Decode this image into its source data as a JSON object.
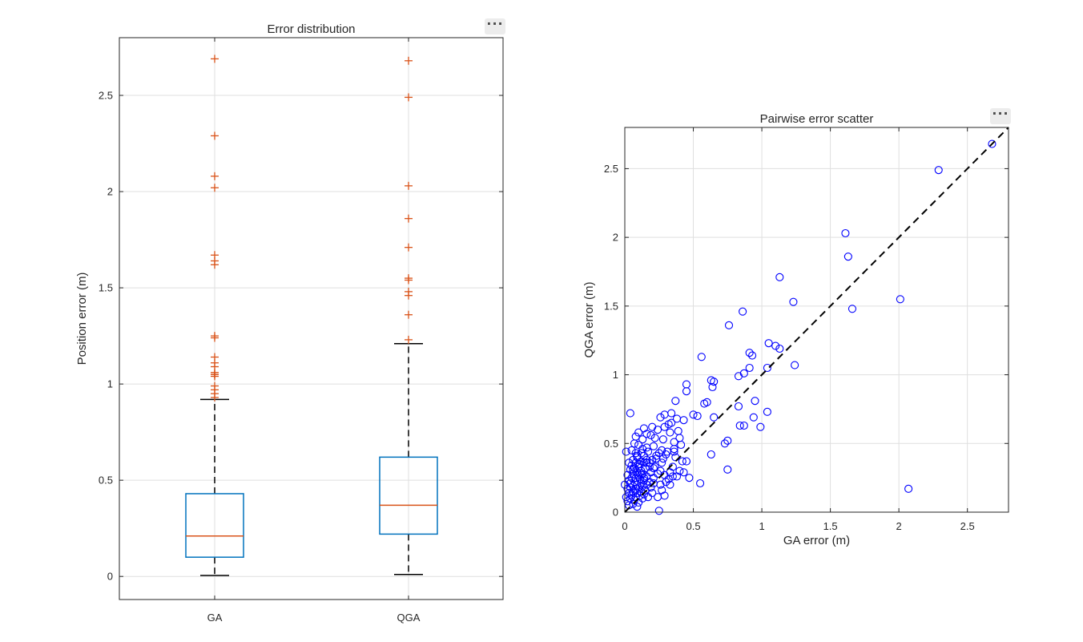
{
  "chart_data": [
    {
      "type": "box",
      "title": "Error distribution",
      "xlabel": "",
      "ylabel": "Position error (m)",
      "categories": [
        "GA",
        "QGA"
      ],
      "ylim": [
        -0.12,
        2.8
      ],
      "yticks": [
        0,
        0.5,
        1,
        1.5,
        2,
        2.5
      ],
      "ytick_labels": [
        "0",
        "0.5",
        "1",
        "1.5",
        "2",
        "2.5"
      ],
      "grid": true,
      "boxes": [
        {
          "name": "GA",
          "min": 0.005,
          "q1": 0.1,
          "median": 0.21,
          "q3": 0.43,
          "max": 0.92,
          "outliers": [
            2.69,
            2.29,
            2.08,
            2.02,
            1.67,
            1.64,
            1.62,
            1.25,
            1.24,
            1.14,
            1.11,
            1.09,
            1.06,
            1.05,
            1.05,
            1.04,
            0.99,
            0.97,
            0.95,
            0.93
          ]
        },
        {
          "name": "QGA",
          "min": 0.01,
          "q1": 0.22,
          "median": 0.37,
          "q3": 0.62,
          "max": 1.21,
          "outliers": [
            2.68,
            2.49,
            2.03,
            1.86,
            1.71,
            1.55,
            1.54,
            1.48,
            1.46,
            1.36,
            1.23
          ]
        }
      ],
      "colors": {
        "box": "#0072BD",
        "median": "#D95319",
        "outlier": "#D95319",
        "whisker": "#000000",
        "grid": "#dfdfdf"
      }
    },
    {
      "type": "scatter",
      "title": "Pairwise error scatter",
      "xlabel": "GA error (m)",
      "ylabel": "QGA error (m)",
      "xlim": [
        0,
        2.8
      ],
      "ylim": [
        0,
        2.8
      ],
      "xticks": [
        0,
        0.5,
        1,
        1.5,
        2,
        2.5
      ],
      "xtick_labels": [
        "0",
        "0.5",
        "1",
        "1.5",
        "2",
        "2.5"
      ],
      "yticks": [
        0,
        0.5,
        1,
        1.5,
        2,
        2.5
      ],
      "ytick_labels": [
        "0",
        "0.5",
        "1",
        "1.5",
        "2",
        "2.5"
      ],
      "grid": true,
      "reference_line": {
        "from": [
          0,
          0
        ],
        "to": [
          2.8,
          2.8
        ],
        "style": "dashed"
      },
      "colors": {
        "marker": "#0000FF",
        "reference": "#000000",
        "grid": "#dfdfdf"
      },
      "points": [
        [
          2.68,
          2.68
        ],
        [
          2.29,
          2.49
        ],
        [
          1.61,
          2.03
        ],
        [
          1.63,
          1.86
        ],
        [
          1.13,
          1.71
        ],
        [
          1.66,
          1.48
        ],
        [
          2.01,
          1.55
        ],
        [
          1.23,
          1.53
        ],
        [
          0.76,
          1.36
        ],
        [
          0.86,
          1.46
        ],
        [
          2.07,
          0.17
        ],
        [
          1.05,
          1.23
        ],
        [
          1.1,
          1.21
        ],
        [
          1.13,
          1.19
        ],
        [
          0.91,
          1.16
        ],
        [
          0.93,
          1.14
        ],
        [
          0.56,
          1.13
        ],
        [
          1.04,
          1.05
        ],
        [
          1.24,
          1.07
        ],
        [
          0.91,
          1.05
        ],
        [
          0.87,
          1.01
        ],
        [
          0.83,
          0.99
        ],
        [
          0.63,
          0.96
        ],
        [
          0.65,
          0.95
        ],
        [
          0.45,
          0.93
        ],
        [
          0.64,
          0.91
        ],
        [
          0.45,
          0.88
        ],
        [
          0.58,
          0.79
        ],
        [
          0.6,
          0.8
        ],
        [
          0.37,
          0.81
        ],
        [
          0.95,
          0.81
        ],
        [
          0.83,
          0.77
        ],
        [
          1.04,
          0.73
        ],
        [
          0.5,
          0.71
        ],
        [
          0.53,
          0.7
        ],
        [
          0.65,
          0.69
        ],
        [
          0.94,
          0.69
        ],
        [
          0.38,
          0.68
        ],
        [
          0.43,
          0.67
        ],
        [
          0.34,
          0.65
        ],
        [
          0.32,
          0.64
        ],
        [
          0.2,
          0.62
        ],
        [
          0.84,
          0.63
        ],
        [
          0.87,
          0.63
        ],
        [
          0.99,
          0.62
        ],
        [
          0.29,
          0.62
        ],
        [
          0.14,
          0.61
        ],
        [
          0.24,
          0.6
        ],
        [
          0.39,
          0.59
        ],
        [
          0.1,
          0.58
        ],
        [
          0.16,
          0.57
        ],
        [
          0.19,
          0.56
        ],
        [
          0.4,
          0.54
        ],
        [
          0.28,
          0.53
        ],
        [
          0.07,
          0.5
        ],
        [
          0.1,
          0.49
        ],
        [
          0.75,
          0.52
        ],
        [
          0.73,
          0.5
        ],
        [
          0.21,
          0.48
        ],
        [
          0.16,
          0.47
        ],
        [
          0.36,
          0.46
        ],
        [
          0.27,
          0.45
        ],
        [
          0.05,
          0.45
        ],
        [
          0.08,
          0.43
        ],
        [
          0.12,
          0.43
        ],
        [
          0.3,
          0.42
        ],
        [
          0.63,
          0.42
        ],
        [
          0.14,
          0.41
        ],
        [
          0.23,
          0.41
        ],
        [
          0.09,
          0.4
        ],
        [
          0.28,
          0.39
        ],
        [
          0.16,
          0.38
        ],
        [
          0.12,
          0.37
        ],
        [
          0.42,
          0.37
        ],
        [
          0.45,
          0.37
        ],
        [
          0.08,
          0.36
        ],
        [
          0.14,
          0.36
        ],
        [
          0.18,
          0.36
        ],
        [
          0.11,
          0.35
        ],
        [
          0.05,
          0.34
        ],
        [
          0.1,
          0.33
        ],
        [
          0.22,
          0.33
        ],
        [
          0.07,
          0.32
        ],
        [
          0.15,
          0.32
        ],
        [
          0.75,
          0.31
        ],
        [
          0.04,
          0.31
        ],
        [
          0.12,
          0.3
        ],
        [
          0.26,
          0.3
        ],
        [
          0.09,
          0.29
        ],
        [
          0.19,
          0.29
        ],
        [
          0.33,
          0.29
        ],
        [
          0.43,
          0.29
        ],
        [
          0.06,
          0.28
        ],
        [
          0.13,
          0.28
        ],
        [
          0.02,
          0.27
        ],
        [
          0.1,
          0.27
        ],
        [
          0.29,
          0.27
        ],
        [
          0.16,
          0.26
        ],
        [
          0.05,
          0.25
        ],
        [
          0.08,
          0.25
        ],
        [
          0.21,
          0.25
        ],
        [
          0.35,
          0.26
        ],
        [
          0.47,
          0.25
        ],
        [
          0.11,
          0.24
        ],
        [
          0.03,
          0.23
        ],
        [
          0.14,
          0.23
        ],
        [
          0.07,
          0.22
        ],
        [
          0.18,
          0.22
        ],
        [
          0.3,
          0.22
        ],
        [
          0.12,
          0.21
        ],
        [
          0.04,
          0.21
        ],
        [
          0.21,
          0.21
        ],
        [
          0.55,
          0.21
        ],
        [
          0.09,
          0.2
        ],
        [
          0.16,
          0.2
        ],
        [
          0.26,
          0.2
        ],
        [
          0.33,
          0.2
        ],
        [
          0.0,
          0.2
        ],
        [
          0.06,
          0.19
        ],
        [
          0.13,
          0.19
        ],
        [
          0.04,
          0.18
        ],
        [
          0.1,
          0.18
        ],
        [
          0.19,
          0.18
        ],
        [
          0.02,
          0.17
        ],
        [
          0.08,
          0.17
        ],
        [
          0.15,
          0.16
        ],
        [
          0.27,
          0.16
        ],
        [
          0.06,
          0.15
        ],
        [
          0.12,
          0.15
        ],
        [
          0.03,
          0.14
        ],
        [
          0.09,
          0.14
        ],
        [
          0.2,
          0.14
        ],
        [
          0.14,
          0.13
        ],
        [
          0.05,
          0.12
        ],
        [
          0.11,
          0.12
        ],
        [
          0.29,
          0.12
        ],
        [
          0.01,
          0.11
        ],
        [
          0.08,
          0.11
        ],
        [
          0.17,
          0.11
        ],
        [
          0.24,
          0.11
        ],
        [
          0.04,
          0.1
        ],
        [
          0.13,
          0.1
        ],
        [
          0.07,
          0.09
        ],
        [
          0.02,
          0.08
        ],
        [
          0.1,
          0.07
        ],
        [
          0.06,
          0.06
        ],
        [
          0.03,
          0.05
        ],
        [
          0.09,
          0.04
        ],
        [
          0.25,
          0.01
        ],
        [
          0.04,
          0.72
        ],
        [
          0.29,
          0.71
        ],
        [
          0.34,
          0.72
        ],
        [
          0.01,
          0.44
        ],
        [
          0.06,
          0.31
        ],
        [
          0.1,
          0.35
        ],
        [
          0.13,
          0.46
        ],
        [
          0.16,
          0.36
        ],
        [
          0.18,
          0.33
        ],
        [
          0.21,
          0.32
        ],
        [
          0.23,
          0.39
        ],
        [
          0.25,
          0.43
        ],
        [
          0.27,
          0.36
        ],
        [
          0.35,
          0.33
        ],
        [
          0.36,
          0.44
        ],
        [
          0.37,
          0.4
        ],
        [
          0.4,
          0.3
        ],
        [
          0.31,
          0.44
        ],
        [
          0.03,
          0.36
        ],
        [
          0.06,
          0.38
        ],
        [
          0.09,
          0.41
        ],
        [
          0.12,
          0.27
        ],
        [
          0.14,
          0.25
        ],
        [
          0.17,
          0.44
        ],
        [
          0.2,
          0.38
        ],
        [
          0.24,
          0.28
        ],
        [
          0.38,
          0.26
        ],
        [
          0.32,
          0.24
        ],
        [
          0.22,
          0.54
        ],
        [
          0.33,
          0.58
        ],
        [
          0.26,
          0.69
        ],
        [
          0.36,
          0.51
        ],
        [
          0.41,
          0.49
        ],
        [
          0.08,
          0.55
        ],
        [
          0.13,
          0.53
        ]
      ]
    }
  ],
  "ui": {
    "axes_menu_glyph": "···"
  }
}
